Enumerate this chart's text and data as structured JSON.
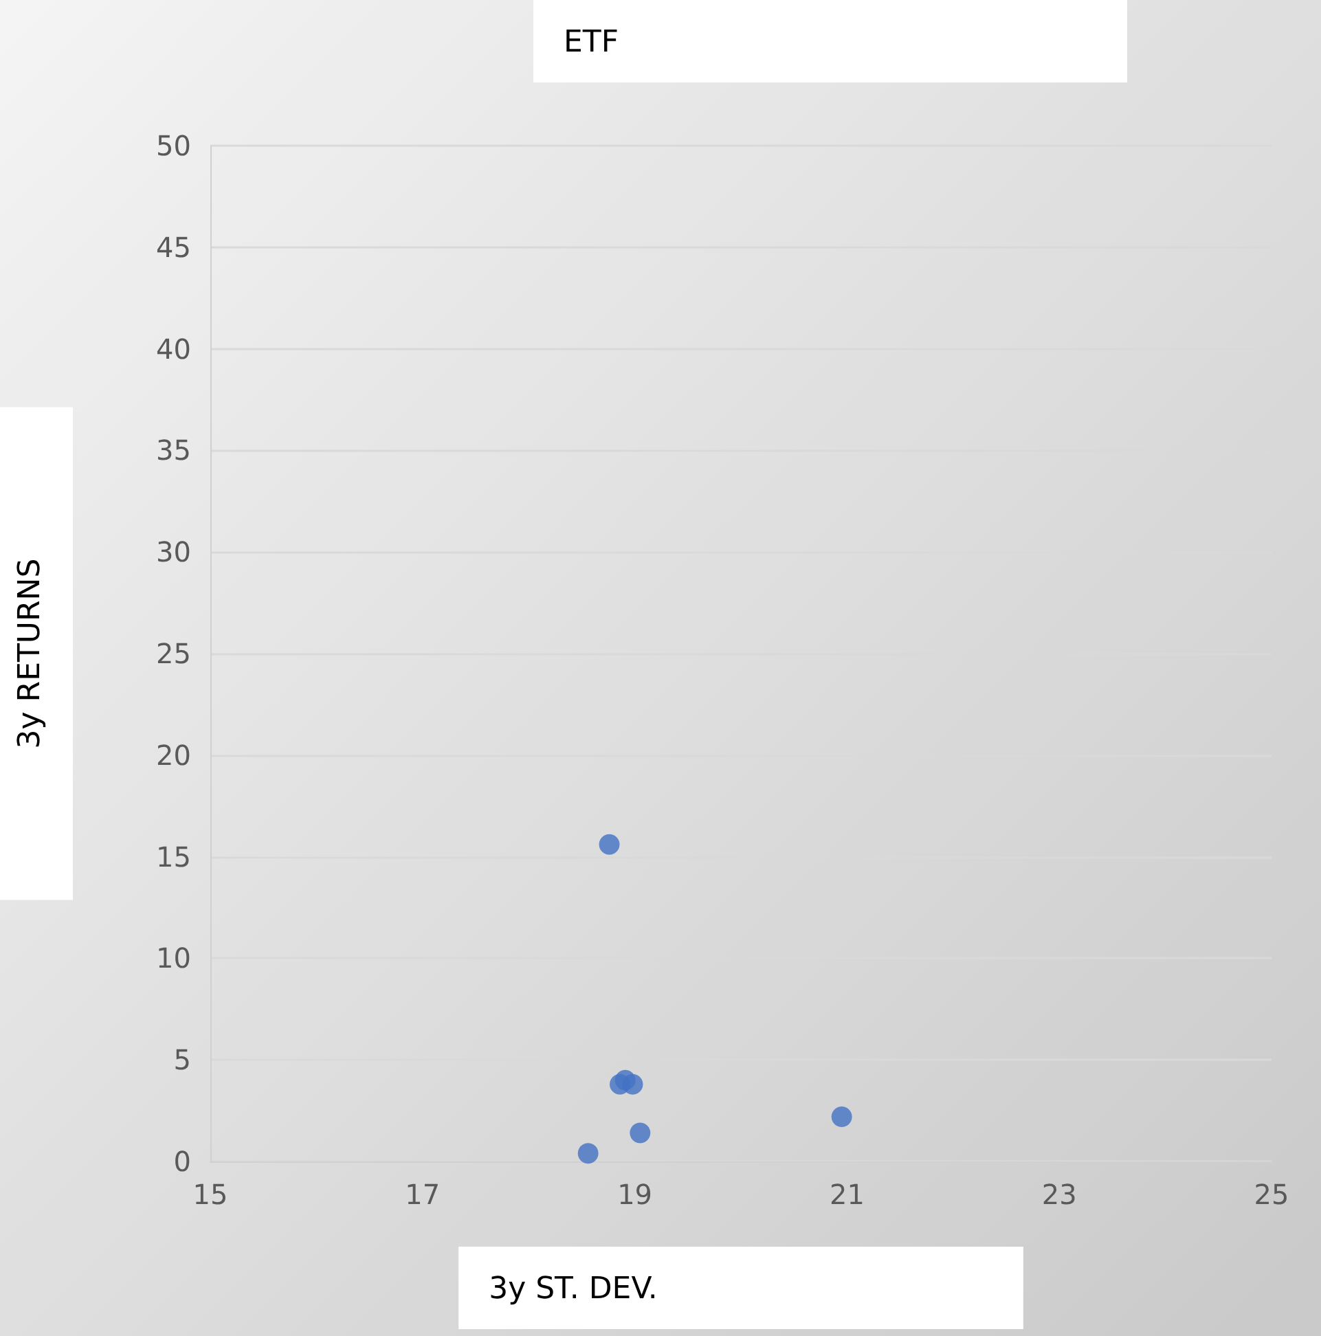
{
  "chart_data": {
    "type": "scatter",
    "title": "ETF",
    "xlabel": "3y ST. DEV.",
    "ylabel": "3y RETURNS",
    "x": [
      18.76,
      18.56,
      18.86,
      18.91,
      18.98,
      19.05,
      20.95
    ],
    "series": [
      {
        "color": "#4472c4",
        "values": [
          15.6,
          0.4,
          3.8,
          4.0,
          3.8,
          1.4,
          2.2
        ]
      }
    ],
    "xlim": [
      15,
      25
    ],
    "xticks": [
      15,
      17,
      19,
      21,
      23,
      25
    ],
    "ylim": [
      0,
      50
    ],
    "yticks": [
      0,
      5,
      10,
      15,
      20,
      25,
      30,
      35,
      40,
      45,
      50
    ],
    "grid": "y",
    "marker": "circle"
  }
}
